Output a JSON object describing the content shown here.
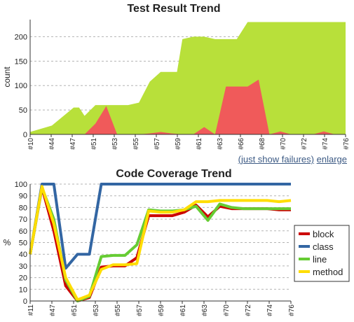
{
  "links": {
    "failures": "(just show failures)",
    "enlarge": "enlarge"
  },
  "chart_data": [
    {
      "type": "area",
      "title": "Test Result Trend",
      "xlabel": "",
      "ylabel": "count",
      "ylim": [
        0,
        235
      ],
      "yticks": [
        0,
        50,
        100,
        150,
        200
      ],
      "grid": true,
      "tick_labels": [
        "#10",
        "#44",
        "#47",
        "#51",
        "#53",
        "#55",
        "#57",
        "#59",
        "#61",
        "#63",
        "#66",
        "#68",
        "#70",
        "#72",
        "#74",
        "#76"
      ],
      "colors": {
        "total": "#b8e03a",
        "failed": "#f05a5a"
      },
      "total": [
        [
          0,
          5
        ],
        [
          2,
          18
        ],
        [
          4,
          55
        ],
        [
          4.5,
          55
        ],
        [
          5,
          38
        ],
        [
          6,
          60
        ],
        [
          7,
          60
        ],
        [
          8,
          60
        ],
        [
          9,
          60
        ],
        [
          10,
          65
        ],
        [
          11,
          108
        ],
        [
          12,
          128
        ],
        [
          13,
          128
        ],
        [
          13.5,
          128
        ],
        [
          14,
          195
        ],
        [
          15,
          200
        ],
        [
          16,
          200
        ],
        [
          17,
          195
        ],
        [
          18,
          195
        ],
        [
          19,
          195
        ],
        [
          20,
          230
        ],
        [
          21,
          230
        ],
        [
          22,
          230
        ],
        [
          23,
          230
        ],
        [
          24,
          230
        ],
        [
          25,
          230
        ],
        [
          26,
          230
        ],
        [
          27,
          230
        ],
        [
          28,
          230
        ],
        [
          29,
          230
        ]
      ],
      "failed": [
        [
          0,
          0
        ],
        [
          5,
          0
        ],
        [
          6,
          22
        ],
        [
          7,
          58
        ],
        [
          8,
          0
        ],
        [
          9,
          0
        ],
        [
          10,
          0
        ],
        [
          11,
          2
        ],
        [
          12,
          5
        ],
        [
          13,
          2
        ],
        [
          14,
          0
        ],
        [
          15,
          0
        ],
        [
          16,
          15
        ],
        [
          17,
          0
        ],
        [
          18,
          98
        ],
        [
          19,
          98
        ],
        [
          20,
          98
        ],
        [
          21,
          112
        ],
        [
          22,
          0
        ],
        [
          23,
          6
        ],
        [
          24,
          0
        ],
        [
          25,
          0
        ],
        [
          26,
          0
        ],
        [
          27,
          6
        ],
        [
          28,
          0
        ],
        [
          29,
          0
        ]
      ]
    },
    {
      "type": "line",
      "title": "Code Coverage Trend",
      "xlabel": "",
      "ylabel": "%",
      "ylim": [
        0,
        100
      ],
      "yticks": [
        0,
        10,
        20,
        30,
        40,
        50,
        60,
        70,
        80,
        90,
        100
      ],
      "grid": true,
      "tick_labels": [
        "#11",
        "#47",
        "#51",
        "#53",
        "#55",
        "#57",
        "#59",
        "#61",
        "#63",
        "#70",
        "#72",
        "#74",
        "#76"
      ],
      "legend_position": "right",
      "series": [
        {
          "name": "block",
          "color": "#cc0000",
          "values": [
            40,
            97,
            60,
            13,
            0,
            3,
            29,
            30,
            30,
            37,
            73,
            73,
            73,
            76,
            82,
            72,
            81,
            79,
            79,
            79,
            79,
            78,
            78
          ]
        },
        {
          "name": "class",
          "color": "#3366a3",
          "values": [
            40,
            100,
            100,
            28,
            40,
            40,
            100,
            100,
            100,
            100,
            100,
            100,
            100,
            100,
            100,
            100,
            100,
            100,
            100,
            100,
            100,
            100,
            100
          ]
        },
        {
          "name": "line",
          "color": "#66cc33",
          "values": [
            40,
            97,
            70,
            18,
            0,
            4,
            38,
            39,
            39,
            48,
            78,
            77,
            77,
            78,
            81,
            69,
            83,
            80,
            79,
            79,
            79,
            79,
            79
          ]
        },
        {
          "name": "method",
          "color": "#ffdd00",
          "values": [
            40,
            98,
            66,
            20,
            1,
            5,
            27,
            31,
            31,
            32,
            77,
            76,
            76,
            78,
            85,
            85,
            86,
            86,
            86,
            86,
            86,
            85,
            86
          ]
        }
      ]
    }
  ]
}
